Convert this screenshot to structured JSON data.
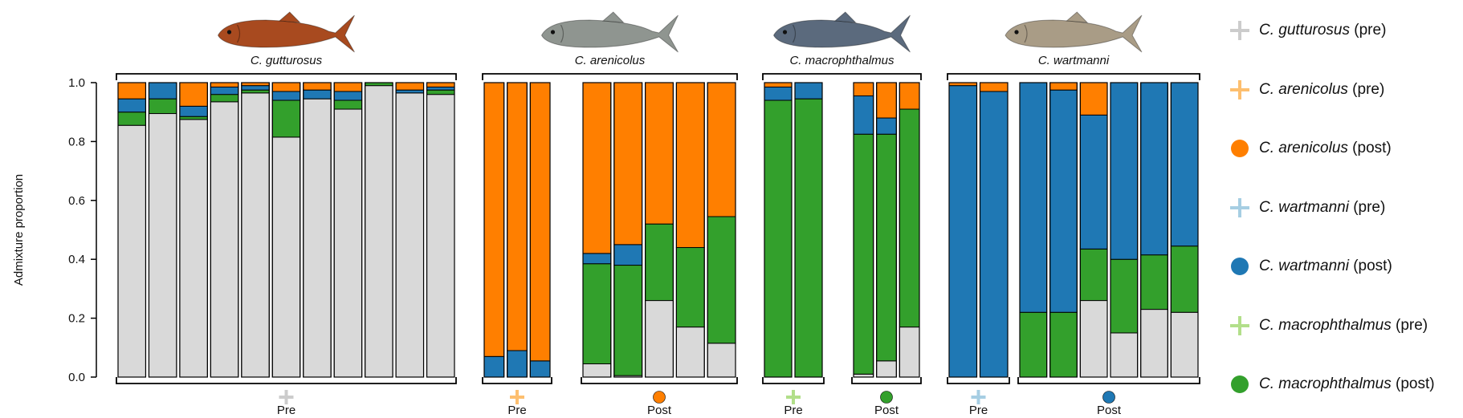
{
  "chart_data": {
    "type": "bar",
    "stacked": true,
    "ylabel": "Admixture proportion",
    "ylim": [
      0,
      1
    ],
    "yticks": [
      "0.0",
      "0.2",
      "0.4",
      "0.6",
      "0.8",
      "1.0"
    ],
    "stack_order": [
      "gray",
      "green",
      "blue",
      "orange"
    ],
    "component_colors": {
      "gray": "#d9d9d9",
      "green": "#33a02c",
      "blue": "#1f78b4",
      "orange": "#ff7f00"
    },
    "legend": [
      {
        "species": "C. gutturosus",
        "period": "(pre)",
        "marker": "cross",
        "color": "#cccccc"
      },
      {
        "species": "C. arenicolus",
        "period": "(pre)",
        "marker": "cross",
        "color": "#fdbf6f"
      },
      {
        "species": "C. arenicolus",
        "period": "(post)",
        "marker": "dot",
        "color": "#ff7f00"
      },
      {
        "species": "C. wartmanni",
        "period": "(pre)",
        "marker": "cross",
        "color": "#a6cee3"
      },
      {
        "species": "C. wartmanni",
        "period": "(post)",
        "marker": "dot",
        "color": "#1f78b4"
      },
      {
        "species": "C. macrophthalmus",
        "period": "(pre)",
        "marker": "cross",
        "color": "#b2df8a"
      },
      {
        "species": "C. macrophthalmus",
        "period": "(post)",
        "marker": "dot",
        "color": "#33a02c"
      }
    ],
    "panels": [
      {
        "species": "C. gutturosus",
        "fish_color": "#a84a1f",
        "groups": [
          {
            "label": "Pre",
            "marker": "cross",
            "color": "#cccccc",
            "bars": [
              {
                "gray": 0.855,
                "green": 0.045,
                "blue": 0.045,
                "orange": 0.055
              },
              {
                "gray": 0.895,
                "green": 0.05,
                "blue": 0.055,
                "orange": 0.0
              },
              {
                "gray": 0.875,
                "green": 0.01,
                "blue": 0.035,
                "orange": 0.08
              },
              {
                "gray": 0.935,
                "green": 0.025,
                "blue": 0.025,
                "orange": 0.015
              },
              {
                "gray": 0.965,
                "green": 0.01,
                "blue": 0.015,
                "orange": 0.01
              },
              {
                "gray": 0.815,
                "green": 0.125,
                "blue": 0.03,
                "orange": 0.03
              },
              {
                "gray": 0.945,
                "green": 0.0,
                "blue": 0.03,
                "orange": 0.025
              },
              {
                "gray": 0.91,
                "green": 0.03,
                "blue": 0.03,
                "orange": 0.03
              },
              {
                "gray": 0.99,
                "green": 0.01,
                "blue": 0.0,
                "orange": 0.0
              },
              {
                "gray": 0.965,
                "green": 0.0,
                "blue": 0.01,
                "orange": 0.025
              },
              {
                "gray": 0.96,
                "green": 0.015,
                "blue": 0.01,
                "orange": 0.015
              }
            ]
          }
        ]
      },
      {
        "species": "C. arenicolus",
        "fish_color": "#8f9590",
        "groups": [
          {
            "label": "Pre",
            "marker": "cross",
            "color": "#fdbf6f",
            "bars": [
              {
                "gray": 0.0,
                "green": 0.0,
                "blue": 0.07,
                "orange": 0.93
              },
              {
                "gray": 0.0,
                "green": 0.0,
                "blue": 0.09,
                "orange": 0.91
              },
              {
                "gray": 0.0,
                "green": 0.0,
                "blue": 0.055,
                "orange": 0.945
              }
            ]
          },
          {
            "label": "Post",
            "marker": "dot",
            "color": "#ff7f00",
            "bars": [
              {
                "gray": 0.045,
                "green": 0.34,
                "blue": 0.035,
                "orange": 0.58
              },
              {
                "gray": 0.005,
                "green": 0.375,
                "blue": 0.07,
                "orange": 0.55
              },
              {
                "gray": 0.26,
                "green": 0.26,
                "blue": 0.0,
                "orange": 0.48
              },
              {
                "gray": 0.17,
                "green": 0.27,
                "blue": 0.0,
                "orange": 0.56
              },
              {
                "gray": 0.115,
                "green": 0.43,
                "blue": 0.0,
                "orange": 0.455
              }
            ]
          }
        ]
      },
      {
        "species": "C. macrophthalmus",
        "fish_color": "#5b6a7d",
        "groups": [
          {
            "label": "Pre",
            "marker": "cross",
            "color": "#b2df8a",
            "bars": [
              {
                "gray": 0.0,
                "green": 0.94,
                "blue": 0.045,
                "orange": 0.015
              },
              {
                "gray": 0.0,
                "green": 0.945,
                "blue": 0.055,
                "orange": 0.0
              }
            ]
          },
          {
            "label": "Post",
            "marker": "dot",
            "color": "#33a02c",
            "bars": [
              {
                "gray": 0.01,
                "green": 0.815,
                "blue": 0.13,
                "orange": 0.045
              },
              {
                "gray": 0.055,
                "green": 0.77,
                "blue": 0.055,
                "orange": 0.12
              },
              {
                "gray": 0.17,
                "green": 0.74,
                "blue": 0.0,
                "orange": 0.09
              }
            ]
          }
        ]
      },
      {
        "species": "C. wartmanni",
        "fish_color": "#a99c86",
        "groups": [
          {
            "label": "Pre",
            "marker": "cross",
            "color": "#a6cee3",
            "bars": [
              {
                "gray": 0.0,
                "green": 0.0,
                "blue": 0.99,
                "orange": 0.01
              },
              {
                "gray": 0.0,
                "green": 0.0,
                "blue": 0.97,
                "orange": 0.03
              }
            ]
          },
          {
            "label": "Post",
            "marker": "dot",
            "color": "#1f78b4",
            "bars": [
              {
                "gray": 0.0,
                "green": 0.22,
                "blue": 0.78,
                "orange": 0.0
              },
              {
                "gray": 0.0,
                "green": 0.22,
                "blue": 0.755,
                "orange": 0.025
              },
              {
                "gray": 0.26,
                "green": 0.175,
                "blue": 0.455,
                "orange": 0.11
              },
              {
                "gray": 0.15,
                "green": 0.25,
                "blue": 0.6,
                "orange": 0.0
              },
              {
                "gray": 0.23,
                "green": 0.185,
                "blue": 0.585,
                "orange": 0.0
              },
              {
                "gray": 0.22,
                "green": 0.225,
                "blue": 0.555,
                "orange": 0.0
              }
            ]
          }
        ]
      }
    ]
  }
}
